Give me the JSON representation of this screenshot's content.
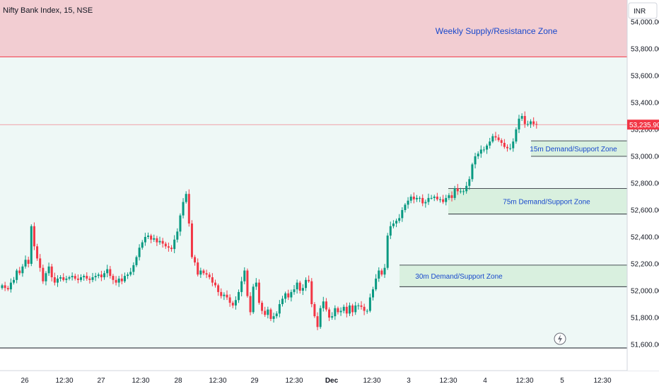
{
  "chart_data": {
    "type": "candlestick",
    "title": "Nifty Bank Index, 15, NSE",
    "currency": "INR",
    "last_price": "53,235.90",
    "colors": {
      "up": "#089981",
      "down": "#f23645",
      "supply_zone": "#f2cdd2",
      "demand_zone": "#d9f0df",
      "zone_text": "#1848cc"
    },
    "y_axis": {
      "ylim": [
        51600,
        54100
      ],
      "tick_labels": [
        "54,000.00",
        "53,800.00",
        "53,600.00",
        "53,400.00",
        "53,200.00",
        "53,000.00",
        "52,800.00",
        "52,600.00",
        "52,400.00",
        "52,200.00",
        "52,000.00",
        "51,800.00",
        "51,600.00"
      ],
      "tick_values": [
        54000,
        53800,
        53600,
        53400,
        53200,
        53000,
        52800,
        52600,
        52400,
        52200,
        52000,
        51800,
        51600
      ]
    },
    "x_axis": {
      "tick_labels": [
        "26",
        "12:30",
        "27",
        "12:30",
        "28",
        "12:30",
        "29",
        "12:30",
        "Dec",
        "12:30",
        "3",
        "12:30",
        "4",
        "12:30",
        "5",
        "12:30"
      ],
      "bold_ticks": [
        "Dec"
      ]
    },
    "zones": [
      {
        "label": "Weekly Supply/Resistance Zone",
        "low": 53740,
        "high": 54250,
        "kind": "supply"
      },
      {
        "label": "15m Demand/Support Zone",
        "low": 53000,
        "high": 53115,
        "kind": "demand"
      },
      {
        "label": "75m Demand/Support Zone",
        "low": 52570,
        "high": 52760,
        "kind": "demand"
      },
      {
        "label": "30m Demand/Support Zone",
        "low": 52030,
        "high": 52190,
        "kind": "demand"
      }
    ],
    "closes": [
      52040,
      52020,
      52010,
      52060,
      52080,
      52150,
      52130,
      52180,
      52230,
      52200,
      52480,
      52330,
      52240,
      52170,
      52070,
      52130,
      52180,
      52100,
      52060,
      52090,
      52100,
      52080,
      52090,
      52100,
      52110,
      52090,
      52080,
      52100,
      52110,
      52090,
      52080,
      52100,
      52110,
      52120,
      52100,
      52130,
      52160,
      52110,
      52080,
      52060,
      52090,
      52070,
      52110,
      52120,
      52140,
      52190,
      52250,
      52320,
      52360,
      52400,
      52410,
      52380,
      52390,
      52360,
      52370,
      52350,
      52330,
      52320,
      52310,
      52380,
      52440,
      52560,
      52660,
      52720,
      52500,
      52250,
      52210,
      52120,
      52150,
      52130,
      52120,
      52100,
      52060,
      52040,
      51990,
      51960,
      51970,
      51950,
      51910,
      51890,
      51930,
      51990,
      52070,
      52150,
      51960,
      51840,
      52030,
      52060,
      51910,
      51850,
      51820,
      51860,
      51790,
      51810,
      51830,
      51900,
      51940,
      51980,
      51950,
      51990,
      52010,
      52060,
      52000,
      52020,
      52080,
      52070,
      51900,
      51810,
      51730,
      51870,
      51920,
      51860,
      51800,
      51810,
      51870,
      51840,
      51850,
      51880,
      51830,
      51890,
      51840,
      51890,
      51890,
      51880,
      51850,
      51850,
      51950,
      52010,
      52090,
      52150,
      52120,
      52170,
      52410,
      52480,
      52500,
      52520,
      52540,
      52600,
      52640,
      52670,
      52700,
      52680,
      52690,
      52690,
      52650,
      52660,
      52690,
      52690,
      52700,
      52680,
      52680,
      52660,
      52690,
      52710,
      52690,
      52760,
      52740,
      52740,
      52740,
      52780,
      52830,
      52940,
      53000,
      53020,
      53050,
      53050,
      53080,
      53110,
      53150,
      53140,
      53120,
      53100,
      53070,
      53060,
      53060,
      53110,
      53200,
      53280,
      53300,
      53240,
      53240,
      53260,
      53240,
      53236
    ]
  }
}
